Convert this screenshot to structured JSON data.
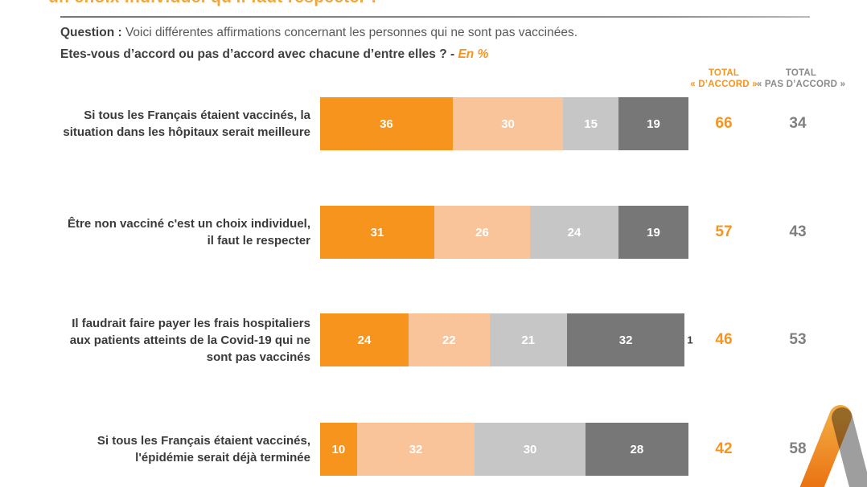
{
  "page": {
    "clipped_title": "un choix individuel qu'il faut respecter !",
    "question_label": "Question :",
    "question_text": " Voici différentes affirmations concernant les personnes qui ne sont pas vaccinées.",
    "question_line2": "Etes-vous d’accord ou pas d’accord avec chacune d’entre elles ? - ",
    "question_unit": "En %"
  },
  "columns": {
    "accord_line1": "TOTAL",
    "accord_line2": "« D’ACCORD »",
    "pas_accord_line1": "TOTAL",
    "pas_accord_line2": "« PAS D’ACCORD »"
  },
  "chart_data": {
    "type": "bar",
    "stacked": true,
    "orientation": "horizontal",
    "unit": "%",
    "xlim": [
      0,
      100
    ],
    "legend": "none",
    "grid": false,
    "title": "Question : Voici différentes affirmations concernant les personnes qui ne sont pas vaccinées. Etes-vous d’accord ou pas d’accord avec chacune d’entre elles ? - En %",
    "segment_colors": [
      "#F7941E",
      "#F9C499",
      "#C6C6C6",
      "#777777"
    ],
    "categories": [
      "Si tous les Français étaient vaccinés, la situation dans les hôpitaux serait meilleure",
      "Être non vacciné c'est un choix individuel, il faut le respecter",
      "Il faudrait faire payer les frais hospitaliers aux patients atteints de la Covid-19 qui ne sont pas vaccinés",
      "Si tous les Français étaient vaccinés, l'épidémie serait déjà terminée"
    ],
    "rows": [
      {
        "label_lines": [
          "Si tous les Français étaient vaccinés, la",
          "situation dans les hôpitaux serait meilleure"
        ],
        "values": [
          36,
          30,
          15,
          19
        ],
        "nsp": null,
        "total_accord": 66,
        "total_pas_accord": 34
      },
      {
        "label_lines": [
          "Être non vacciné c'est un choix individuel,",
          "il faut le respecter"
        ],
        "values": [
          31,
          26,
          24,
          19
        ],
        "nsp": null,
        "total_accord": 57,
        "total_pas_accord": 43
      },
      {
        "label_lines": [
          "Il faudrait faire payer les frais hospitaliers",
          "aux patients atteints de la Covid-19 qui ne",
          "sont pas vaccinés"
        ],
        "values": [
          24,
          22,
          21,
          32
        ],
        "nsp": 1,
        "total_accord": 46,
        "total_pas_accord": 53
      },
      {
        "label_lines": [
          "Si tous les Français étaient vaccinés,",
          "l'épidémie serait déjà terminée"
        ],
        "values": [
          10,
          32,
          30,
          28
        ],
        "nsp": null,
        "total_accord": 42,
        "total_pas_accord": 58
      }
    ]
  },
  "logo": {
    "colors": {
      "orange_top": "#F2A93F",
      "orange_bottom": "#E96A0C",
      "gray": "#9E9E9E"
    }
  }
}
